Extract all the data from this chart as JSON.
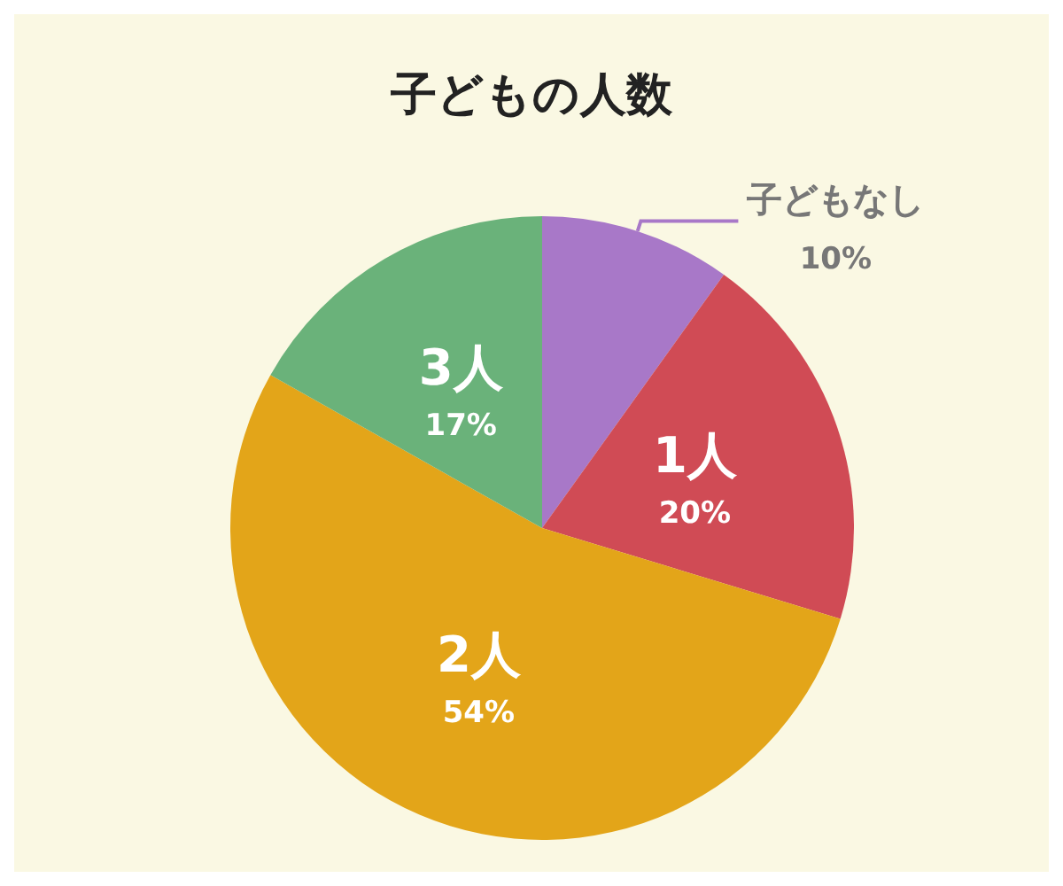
{
  "chart_data": {
    "type": "pie",
    "title": "子どもの人数",
    "categories": [
      "子どもなし",
      "1人",
      "2人",
      "3人"
    ],
    "values": [
      10,
      20,
      54,
      17
    ],
    "value_labels": [
      "10%",
      "20%",
      "54%",
      "17%"
    ],
    "colors": [
      "#a878c8",
      "#d04b55",
      "#e3a519",
      "#6ab27a"
    ],
    "legend": false
  }
}
